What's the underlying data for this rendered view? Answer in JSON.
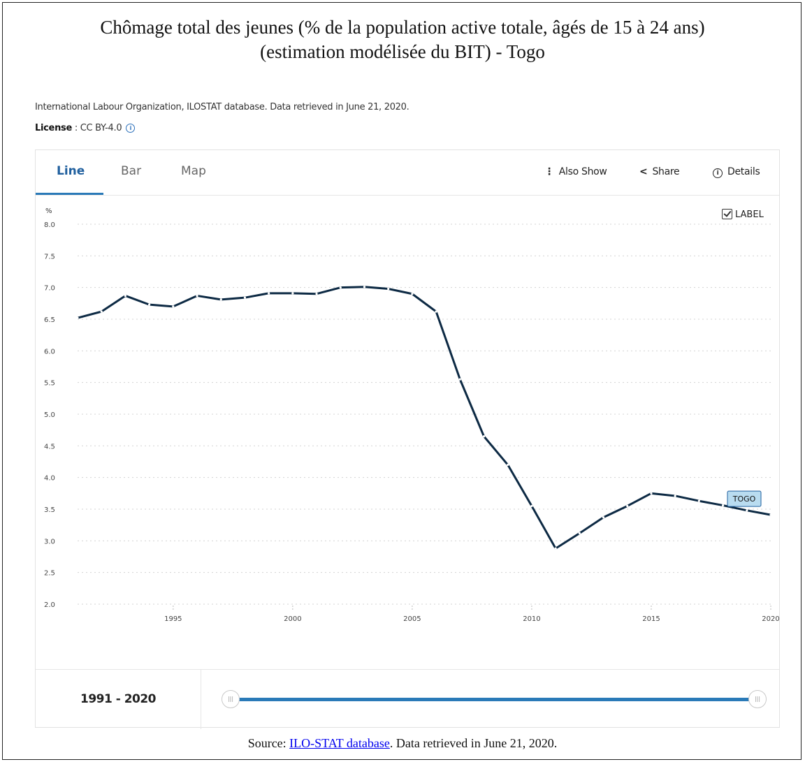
{
  "document": {
    "title": "Chômage total des jeunes (% de la population active totale, âgés de 15 à 24 ans) (estimation modélisée du BIT) - Togo",
    "title_line1": "Chômage total des jeunes (% de la population active totale, âgés de 15 à 24 ans)",
    "title_line2": "(estimation modélisée du BIT) - Togo",
    "source_prefix": "Source: ",
    "source_link": "ILO-STAT database",
    "source_suffix": ". Data retrieved in June 21, 2020."
  },
  "meta": {
    "attribution": "International Labour Organization, ILOSTAT database. Data retrieved in June 21, 2020.",
    "license_label": "License",
    "license_value": " : CC BY-4.0"
  },
  "tabs": [
    {
      "label": "Line",
      "active": true
    },
    {
      "label": "Bar",
      "active": false
    },
    {
      "label": "Map",
      "active": false
    }
  ],
  "actions": {
    "also_show": "Also Show",
    "share": "Share",
    "details": "Details"
  },
  "label_toggle": {
    "label": "LABEL",
    "checked": true
  },
  "range": {
    "label": "1991 - 2020",
    "start_fraction": 0.0,
    "end_fraction": 1.0
  },
  "colors": {
    "line": "#0d2a44",
    "accent": "#2a7ab8",
    "series_label_bg": "#b9dcf0"
  },
  "chart_data": {
    "type": "line",
    "ylabel": "%",
    "ylim": [
      2.0,
      8.0
    ],
    "yticks": [
      "2.0",
      "2.5",
      "3.0",
      "3.5",
      "4.0",
      "4.5",
      "5.0",
      "5.5",
      "6.0",
      "6.5",
      "7.0",
      "7.5",
      "8.0"
    ],
    "xlim": [
      1991,
      2020
    ],
    "xticks": [
      "1995",
      "2000",
      "2005",
      "2010",
      "2015",
      "2020"
    ],
    "grid": true,
    "series": [
      {
        "name": "TOGO",
        "x": [
          1991,
          1992,
          1993,
          1994,
          1995,
          1996,
          1997,
          1998,
          1999,
          2000,
          2001,
          2002,
          2003,
          2004,
          2005,
          2006,
          2007,
          2008,
          2009,
          2010,
          2011,
          2012,
          2013,
          2014,
          2015,
          2016,
          2017,
          2018,
          2019,
          2020
        ],
        "values": [
          6.52,
          6.62,
          6.87,
          6.73,
          6.7,
          6.87,
          6.81,
          6.84,
          6.91,
          6.91,
          6.9,
          7.0,
          7.01,
          6.98,
          6.9,
          6.62,
          5.55,
          4.65,
          4.2,
          3.55,
          2.88,
          3.12,
          3.37,
          3.55,
          3.75,
          3.71,
          3.63,
          3.56,
          3.48,
          3.41
        ]
      }
    ]
  }
}
